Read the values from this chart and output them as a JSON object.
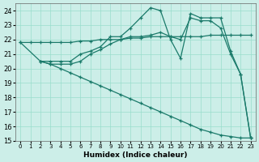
{
  "xlabel": "Humidex (Indice chaleur)",
  "bg_color": "#cceee8",
  "grid_color": "#99ddcc",
  "line_color": "#1a7a6a",
  "xlim": [
    -0.5,
    23.5
  ],
  "ylim": [
    15,
    24.5
  ],
  "yticks": [
    15,
    16,
    17,
    18,
    19,
    20,
    21,
    22,
    23,
    24
  ],
  "xticks": [
    0,
    1,
    2,
    3,
    4,
    5,
    6,
    7,
    8,
    9,
    10,
    11,
    12,
    13,
    14,
    15,
    16,
    17,
    18,
    19,
    20,
    21,
    22,
    23
  ],
  "series": [
    {
      "x": [
        0,
        1,
        2,
        3,
        4,
        5,
        6,
        7,
        8,
        9,
        10,
        11,
        12,
        13,
        14,
        15,
        16,
        17,
        18,
        19,
        20,
        21,
        22,
        23
      ],
      "y": [
        21.8,
        21.8,
        21.8,
        21.8,
        21.8,
        21.8,
        21.9,
        21.9,
        22.0,
        22.0,
        22.0,
        22.1,
        22.1,
        22.2,
        22.2,
        22.2,
        22.2,
        22.2,
        22.2,
        22.3,
        22.3,
        22.3,
        22.3,
        22.3
      ]
    },
    {
      "x": [
        0,
        2,
        3,
        4,
        5,
        6,
        7,
        8,
        9,
        10,
        11,
        12,
        13,
        14,
        15,
        16,
        17,
        18,
        19,
        20,
        21,
        22,
        23
      ],
      "y": [
        21.8,
        20.5,
        20.3,
        20.0,
        19.7,
        19.4,
        19.1,
        18.8,
        18.5,
        18.2,
        17.9,
        17.6,
        17.3,
        17.0,
        16.7,
        16.4,
        16.1,
        15.8,
        15.6,
        15.4,
        15.3,
        15.2,
        15.2
      ]
    },
    {
      "x": [
        2,
        3,
        4,
        5,
        6,
        7,
        8,
        9,
        10,
        11,
        12,
        13,
        14,
        15,
        16,
        17,
        18,
        19,
        20,
        21,
        22,
        23
      ],
      "y": [
        20.5,
        20.5,
        20.5,
        20.5,
        21.0,
        21.2,
        21.5,
        22.2,
        22.2,
        22.8,
        23.5,
        24.2,
        24.0,
        22.0,
        20.7,
        23.8,
        23.5,
        23.5,
        23.5,
        21.2,
        19.6,
        15.2
      ]
    },
    {
      "x": [
        2,
        3,
        4,
        5,
        6,
        7,
        8,
        9,
        10,
        11,
        12,
        13,
        14,
        15,
        16,
        17,
        18,
        19,
        20,
        21,
        22,
        23
      ],
      "y": [
        20.5,
        20.3,
        20.3,
        20.3,
        20.5,
        21.0,
        21.3,
        21.7,
        22.0,
        22.2,
        22.2,
        22.3,
        22.5,
        22.2,
        22.0,
        23.5,
        23.3,
        23.3,
        22.8,
        21.0,
        19.6,
        15.2
      ]
    }
  ]
}
